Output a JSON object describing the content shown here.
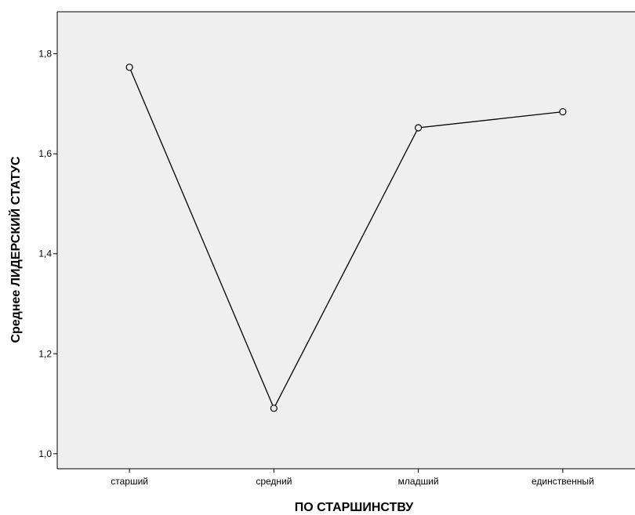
{
  "chart_data": {
    "type": "line",
    "title": "",
    "xlabel": "ПО СТАРШИНСТВУ",
    "ylabel": "Среднее ЛИДЕРСКИЙ СТАТУС",
    "categories": [
      "старший",
      "средний",
      "младший",
      "единственный"
    ],
    "series": [
      {
        "values": [
          1.773,
          1.091,
          1.652,
          1.684
        ]
      }
    ],
    "ylim": [
      0.97,
      1.884
    ],
    "yticks": [
      1.0,
      1.2,
      1.4,
      1.6,
      1.8
    ],
    "ytick_labels": [
      "1,0",
      "1,2",
      "1,4",
      "1,6",
      "1,8"
    ],
    "grid": false,
    "legend": "none",
    "marker": "open-circle",
    "colors": {
      "plot_background": "#efefef",
      "line": "#000000",
      "axis": "#000000"
    }
  }
}
